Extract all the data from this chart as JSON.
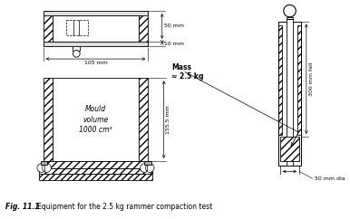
{
  "bg_color": "#ffffff",
  "line_color": "#000000",
  "caption_bold": "Fig. 11.1",
  "caption_rest": "   Equipment for the 2.5 kg rammer compaction test",
  "label_50mm": "50 mm",
  "label_10mm": "10 mm",
  "label_105mm": "105 mm",
  "label_mass": "Mass\n≈ 2.5 kg",
  "label_155": "155.5 mm",
  "label_300": "300 mm fall",
  "label_50dia": "50 mm dia",
  "label_mould": "Mould\nvolume\n1000 cm³"
}
